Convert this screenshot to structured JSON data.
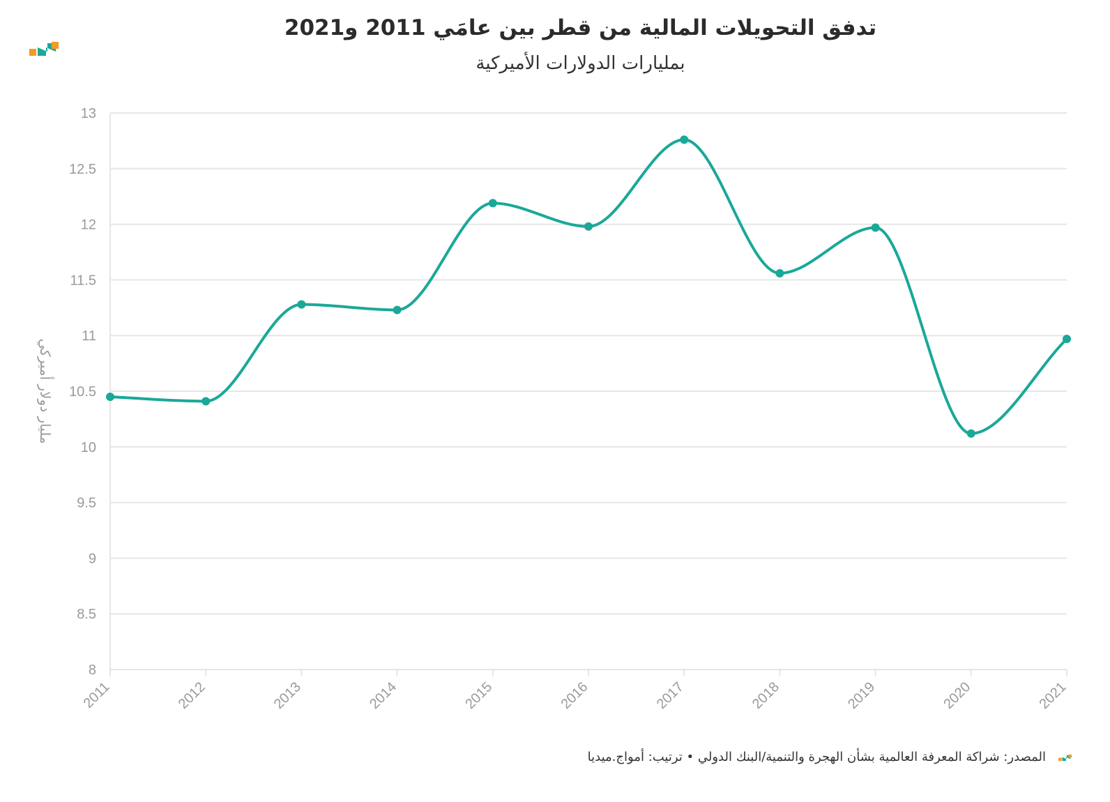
{
  "header": {
    "title": "تدفق التحويلات المالية من قطر بين عامَي 2011 و2021",
    "subtitle": "بمليارات الدولارات الأميركية",
    "logo_icon": "amwaj-logo-icon"
  },
  "footer": {
    "source_text": "المصدر: شراكة المعرفة العالمية بشأن الهجرة والتنمية/البنك الدولي • ترتيب: أمواج.ميديا",
    "logo_icon": "amwaj-logo-icon"
  },
  "colors": {
    "line": "#1aa898",
    "grid": "#e6e6e6",
    "axis_text": "#9a9a9a",
    "logo_orange": "#f59a23",
    "logo_teal": "#1aa898"
  },
  "chart_data": {
    "type": "line",
    "title": "تدفق التحويلات المالية من قطر بين عامَي 2011 و2021",
    "subtitle": "بمليارات الدولارات الأميركية",
    "xlabel": "",
    "ylabel": "مليار دولار أميركي",
    "x": [
      "2011",
      "2012",
      "2013",
      "2014",
      "2015",
      "2016",
      "2017",
      "2018",
      "2019",
      "2020",
      "2021"
    ],
    "series": [
      {
        "values": [
          10.45,
          10.41,
          11.28,
          11.23,
          12.19,
          11.98,
          12.76,
          11.56,
          11.97,
          10.12,
          10.97
        ]
      }
    ],
    "ylim": [
      8,
      13
    ],
    "yticks": [
      "8",
      "8.5",
      "9",
      "9.5",
      "10",
      "10.5",
      "11",
      "11.5",
      "12",
      "12.5",
      "13"
    ],
    "grid": true,
    "smooth": true
  }
}
